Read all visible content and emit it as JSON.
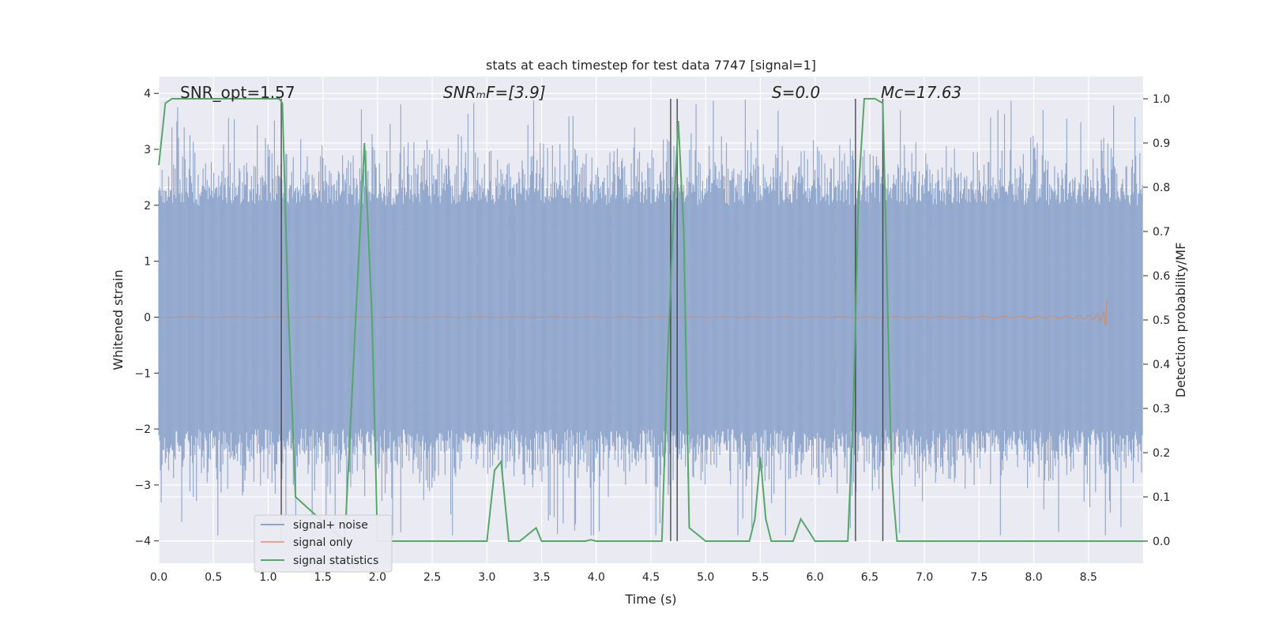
{
  "chart_data": {
    "type": "line",
    "title": "stats at each timestep for test data 7747 [signal=1]",
    "xlabel": "Time (s)",
    "ylabel_left": "Whitened strain",
    "ylabel_right": "Detection probability/MF",
    "xlim": [
      0.0,
      9.0
    ],
    "ylim_left": [
      -4.4,
      4.3
    ],
    "ylim_right": [
      -0.05,
      1.05
    ],
    "x_ticks": [
      "0.0",
      "0.5",
      "1.0",
      "1.5",
      "2.0",
      "2.5",
      "3.0",
      "3.5",
      "4.0",
      "4.5",
      "5.0",
      "5.5",
      "6.0",
      "6.5",
      "7.0",
      "7.5",
      "8.0",
      "8.5"
    ],
    "y_left_ticks": [
      "4",
      "3",
      "2",
      "1",
      "0",
      "−1",
      "−2",
      "−3",
      "−4"
    ],
    "y_right_ticks": [
      "1.0",
      "0.9",
      "0.8",
      "0.7",
      "0.6",
      "0.5",
      "0.4",
      "0.3",
      "0.2",
      "0.1",
      "0.0"
    ],
    "grid": true,
    "legend_position": "lower-left",
    "annotations": {
      "snr_opt": "SNR_opt=1.57",
      "snr_mf": "SNRₘF=[3.9]",
      "s_value": "S=0.0",
      "mc_value": "Mc=17.63"
    },
    "colors": {
      "background": "#eaeaf2",
      "grid": "#ffffff",
      "signal_noise": "#8fa6cc",
      "signal_only": "#dd8452",
      "signal_statistics": "#55a868",
      "vlines": "#3a3a3a"
    },
    "series": [
      {
        "name": "signal+ noise",
        "axis": "left",
        "style": "noise band",
        "envelope_typical": 2.0,
        "envelope_peak": 3.9
      },
      {
        "name": "signal only",
        "axis": "left",
        "style": "chirp",
        "end_time": 8.67,
        "peak_amplitude": 0.35
      },
      {
        "name": "signal statistics",
        "axis": "right",
        "style": "line",
        "x": [
          0.0,
          0.06,
          0.12,
          0.5,
          1.0,
          1.1,
          1.13,
          1.18,
          1.25,
          1.7,
          1.8,
          1.88,
          1.95,
          2.0,
          2.5,
          3.0,
          3.07,
          3.13,
          3.2,
          3.3,
          3.4,
          3.45,
          3.5,
          3.9,
          3.95,
          4.0,
          4.6,
          4.65,
          4.7,
          4.75,
          4.8,
          4.85,
          5.0,
          5.4,
          5.45,
          5.5,
          5.55,
          5.6,
          5.8,
          5.87,
          5.95,
          6.0,
          6.3,
          6.35,
          6.4,
          6.45,
          6.55,
          6.62,
          6.7,
          6.75,
          7.0,
          8.0,
          9.0
        ],
        "values": [
          0.85,
          0.99,
          1.0,
          1.0,
          1.0,
          1.0,
          0.99,
          0.55,
          0.1,
          0.0,
          0.5,
          0.9,
          0.5,
          0.0,
          0.0,
          0.0,
          0.16,
          0.18,
          0.0,
          0.0,
          0.02,
          0.03,
          0.0,
          0.0,
          0.003,
          0.0,
          0.0,
          0.4,
          0.7,
          0.95,
          0.7,
          0.03,
          0.0,
          0.0,
          0.05,
          0.19,
          0.05,
          0.0,
          0.0,
          0.05,
          0.02,
          0.0,
          0.0,
          0.3,
          0.8,
          1.0,
          1.0,
          0.99,
          0.15,
          0.0,
          0.0,
          0.0,
          0.0
        ]
      }
    ],
    "vertical_markers": [
      1.12,
      4.68,
      4.74,
      6.37,
      6.62
    ]
  }
}
